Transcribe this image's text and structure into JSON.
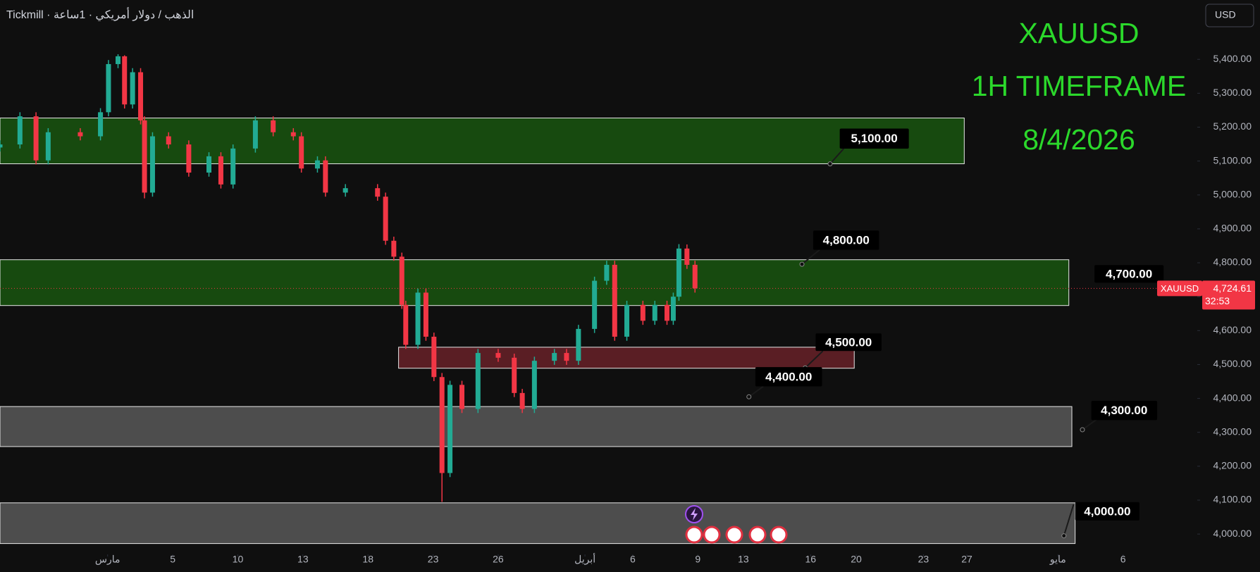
{
  "chart_data": {
    "type": "candlestick",
    "symbol_label": "Tickmill · الذهب / دولار أمريكي · 1ساعة",
    "title": "XAUUSD",
    "subtitle": "1H TIMEFRAME",
    "date": "8/4/2026",
    "currency": "USD",
    "up_color": "#22ab94",
    "down_color": "#f23645",
    "x": [
      -4.96,
      -4.04,
      -3.3,
      -2.74,
      -1.26,
      -0.33,
      0.04,
      0.48,
      0.78,
      1.15,
      1.52,
      1.7,
      2.07,
      2.81,
      3.74,
      4.67,
      5.22,
      5.78,
      6.81,
      7.63,
      8.56,
      8.93,
      9.67,
      10.04,
      10.96,
      12.44,
      12.81,
      13.19,
      13.56,
      13.74,
      14.3,
      14.67,
      15.04,
      15.41,
      15.78,
      16.33,
      17.07,
      18.0,
      18.74,
      19.11,
      19.67,
      20.59,
      21.15,
      21.7,
      22.44,
      23.0,
      23.37,
      23.93,
      24.67,
      25.22,
      25.78,
      26.07,
      26.33,
      26.7,
      27.07
    ],
    "open": [
      5140,
      5149,
      5232,
      5102,
      5185,
      5173,
      5244,
      5386,
      5409,
      5267,
      5362,
      5220,
      5007,
      5173,
      5149,
      5066,
      5114,
      5031,
      5137,
      5220,
      5185,
      5173,
      5078,
      5102,
      5007,
      5020,
      4995,
      4865,
      4818,
      4676,
      4558,
      4712,
      4582,
      4463,
      4180,
      4440,
      4369,
      4534,
      4520,
      4416,
      4369,
      4511,
      4534,
      4511,
      4605,
      4747,
      4794,
      4582,
      4676,
      4629,
      4676,
      4629,
      4700,
      4842,
      4794
    ],
    "high": [
      5161,
      5244,
      5244,
      5197,
      5197,
      5256,
      5398,
      5415,
      5412,
      5374,
      5374,
      5232,
      5185,
      5185,
      5161,
      5126,
      5126,
      5149,
      5232,
      5232,
      5197,
      5185,
      5114,
      5114,
      5032,
      5032,
      5007,
      4877,
      4830,
      4688,
      4724,
      4724,
      4594,
      4475,
      4452,
      4452,
      4546,
      4546,
      4532,
      4428,
      4523,
      4546,
      4546,
      4617,
      4759,
      4806,
      4806,
      4688,
      4688,
      4688,
      4688,
      4712,
      4855,
      4854,
      4806
    ],
    "low": [
      5128,
      5137,
      5090,
      5090,
      5161,
      5161,
      5232,
      5374,
      5255,
      5255,
      5208,
      4990,
      4995,
      5137,
      5054,
      5054,
      5019,
      5019,
      5125,
      5173,
      5161,
      5066,
      5066,
      4995,
      4995,
      4983,
      4853,
      4806,
      4664,
      4546,
      4546,
      4570,
      4451,
      4095,
      4168,
      4357,
      4357,
      4508,
      4404,
      4357,
      4357,
      4499,
      4499,
      4499,
      4593,
      4735,
      4570,
      4570,
      4617,
      4617,
      4617,
      4617,
      4688,
      4782,
      4712
    ],
    "close": [
      5149,
      5232,
      5102,
      5185,
      5173,
      5244,
      5386,
      5409,
      5267,
      5362,
      5220,
      5007,
      5173,
      5149,
      5066,
      5114,
      5031,
      5137,
      5220,
      5185,
      5173,
      5078,
      5102,
      5007,
      5020,
      4995,
      4865,
      4818,
      4676,
      4558,
      4712,
      4582,
      4463,
      4180,
      4440,
      4369,
      4534,
      4520,
      4416,
      4369,
      4511,
      4534,
      4511,
      4605,
      4747,
      4794,
      4582,
      4676,
      4629,
      4676,
      4629,
      4700,
      4842,
      4794,
      4724.61
    ],
    "xlim": [
      -4.96,
      50.22
    ],
    "xticks": [
      {
        "value": 0,
        "label": "مارس"
      },
      {
        "value": 3,
        "label": "5"
      },
      {
        "value": 6,
        "label": "10"
      },
      {
        "value": 9,
        "label": "13"
      },
      {
        "value": 12,
        "label": "18"
      },
      {
        "value": 15,
        "label": "23"
      },
      {
        "value": 18,
        "label": "26"
      },
      {
        "value": 22,
        "label": "أبريل"
      },
      {
        "value": 24.2,
        "label": "6"
      },
      {
        "value": 27.2,
        "label": "9"
      },
      {
        "value": 29.3,
        "label": "13"
      },
      {
        "value": 32.4,
        "label": "16"
      },
      {
        "value": 34.5,
        "label": "20"
      },
      {
        "value": 37.6,
        "label": "23"
      },
      {
        "value": 39.6,
        "label": "27"
      },
      {
        "value": 43.8,
        "label": "مايو"
      },
      {
        "value": 46.8,
        "label": "6"
      }
    ],
    "ylim": [
      3940,
      5575
    ],
    "yticks": [
      {
        "value": 4000,
        "label": "4,000.00"
      },
      {
        "value": 4100,
        "label": "4,100.00"
      },
      {
        "value": 4200,
        "label": "4,200.00"
      },
      {
        "value": 4300,
        "label": "4,300.00"
      },
      {
        "value": 4400,
        "label": "4,400.00"
      },
      {
        "value": 4500,
        "label": "4,500.00"
      },
      {
        "value": 4600,
        "label": "4,600.00"
      },
      {
        "value": 4700,
        "label": "4,700.00"
      },
      {
        "value": 4800,
        "label": "4,800.00"
      },
      {
        "value": 4900,
        "label": "4,900.00"
      },
      {
        "value": 5000,
        "label": "5,000.00"
      },
      {
        "value": 5100,
        "label": "5,100.00"
      },
      {
        "value": 5200,
        "label": "5,200.00"
      },
      {
        "value": 5300,
        "label": "5,300.00"
      },
      {
        "value": 5400,
        "label": "5,400.00"
      }
    ],
    "zones": [
      {
        "top": 5227,
        "bottom": 5092,
        "x0": -4.96,
        "x1": 39.48,
        "color": "#174a0f"
      },
      {
        "top": 4809,
        "bottom": 4674,
        "x0": -4.96,
        "x1": 44.3,
        "color": "#174a0f"
      },
      {
        "top": 4551,
        "bottom": 4489,
        "x0": 13.41,
        "x1": 34.41,
        "color": "#5a1e24"
      },
      {
        "top": 4376,
        "bottom": 4258,
        "x0": -4.96,
        "x1": 44.44,
        "color": "#4d4d4d"
      },
      {
        "top": 4092,
        "bottom": 3972,
        "x0": -4.96,
        "x1": 44.59,
        "color": "#4d4d4d"
      }
    ],
    "annotations": [
      "5,100.00",
      "4,800.00",
      "4,700.00",
      "4,500.00",
      "4,400.00",
      "4,300.00",
      "4,000.00"
    ],
    "last_price": {
      "value": 4724.61,
      "label": "4,724.61",
      "symbol": "XAUUSD",
      "countdown": "32:53"
    }
  }
}
